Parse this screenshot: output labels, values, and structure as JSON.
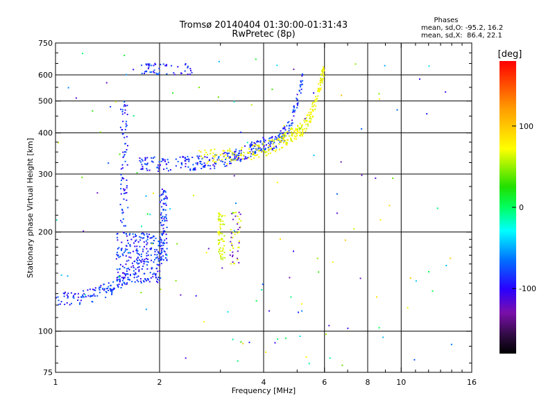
{
  "chart_data": {
    "type": "scatter",
    "title": "Tromsø 20140404 01:30:00-01:31:43",
    "subtitle": "RwPretec (8p)",
    "xlabel": "Frequency [MHz]",
    "ylabel": "Stationary phase Virtual Height [km]",
    "x_scale": "log",
    "y_scale": "log",
    "xlim": [
      1,
      16
    ],
    "ylim": [
      75,
      750
    ],
    "x_ticks": [
      1,
      2,
      4,
      6,
      8,
      10,
      16
    ],
    "y_ticks": [
      75,
      100,
      200,
      300,
      400,
      500,
      600,
      750
    ],
    "x_tick_labels": [
      "1",
      "2",
      "4",
      "6",
      "8",
      "10",
      "16"
    ],
    "y_tick_labels": [
      "75",
      "100",
      "200",
      "300",
      "400",
      "500",
      "600",
      "750"
    ],
    "x_gridlines": [
      2,
      4,
      6,
      8,
      10
    ],
    "y_gridlines": [
      100,
      200,
      300,
      400,
      500,
      600
    ],
    "legend": {
      "title": "Phases",
      "line_o": "mean, sd,O: -95.2, 16.2",
      "line_x": "mean, sd,X:  86.4, 22.1"
    },
    "colorbar": {
      "label": "[deg]",
      "range": [
        -180,
        180
      ],
      "ticks": [
        100,
        0,
        -100
      ],
      "tick_labels": [
        "100",
        "0",
        "-100"
      ]
    },
    "traces": [
      {
        "kind": "o_E",
        "x_range": [
          1.0,
          1.65
        ],
        "h_start": 125,
        "h_end": 148,
        "steep": 2.0,
        "phase": -100,
        "n": 110
      },
      {
        "kind": "o_F_low",
        "x_range": [
          1.5,
          2.05
        ],
        "h_range": [
          140,
          200
        ],
        "phase": -100,
        "n": 260
      },
      {
        "kind": "o_F",
        "x_range": [
          1.75,
          3.9
        ],
        "h_start": 322,
        "h_end": 370,
        "steep": 3.0,
        "phase": -100,
        "n": 230
      },
      {
        "kind": "o_F_cusp",
        "x_range": [
          3.9,
          5.2
        ],
        "h_start": 370,
        "h_end": 600,
        "steep": 3.0,
        "phase": -100,
        "n": 120
      },
      {
        "kind": "x_F",
        "x_range": [
          2.6,
          4.9
        ],
        "h_start": 340,
        "h_end": 400,
        "steep": 2.5,
        "phase": 95,
        "n": 160
      },
      {
        "kind": "x_F_cusp",
        "x_range": [
          4.9,
          6.0
        ],
        "h_start": 400,
        "h_end": 640,
        "steep": 2.0,
        "phase": 95,
        "n": 130
      },
      {
        "kind": "upper_blob",
        "x_range": [
          1.75,
          2.5
        ],
        "h_range": [
          600,
          650
        ],
        "phase": -100,
        "n": 50
      },
      {
        "kind": "column_185",
        "x": 1.58,
        "h_range": [
          200,
          500
        ],
        "phase": -100,
        "n": 70
      },
      {
        "kind": "column_210",
        "x": 2.05,
        "h_range": [
          160,
          270
        ],
        "phase": -100,
        "n": 90
      },
      {
        "kind": "x_patch",
        "x_range": [
          2.95,
          3.1
        ],
        "h_range": [
          165,
          230
        ],
        "phase": 85,
        "n": 60
      },
      {
        "kind": "mixed_patch",
        "x_range": [
          3.2,
          3.45
        ],
        "h_range": [
          160,
          230
        ],
        "phase": -130,
        "n": 45
      },
      {
        "kind": "noise",
        "x_range": [
          1.0,
          14.0
        ],
        "h_range": [
          78,
          700
        ],
        "phase": 0,
        "n": 140
      }
    ]
  }
}
